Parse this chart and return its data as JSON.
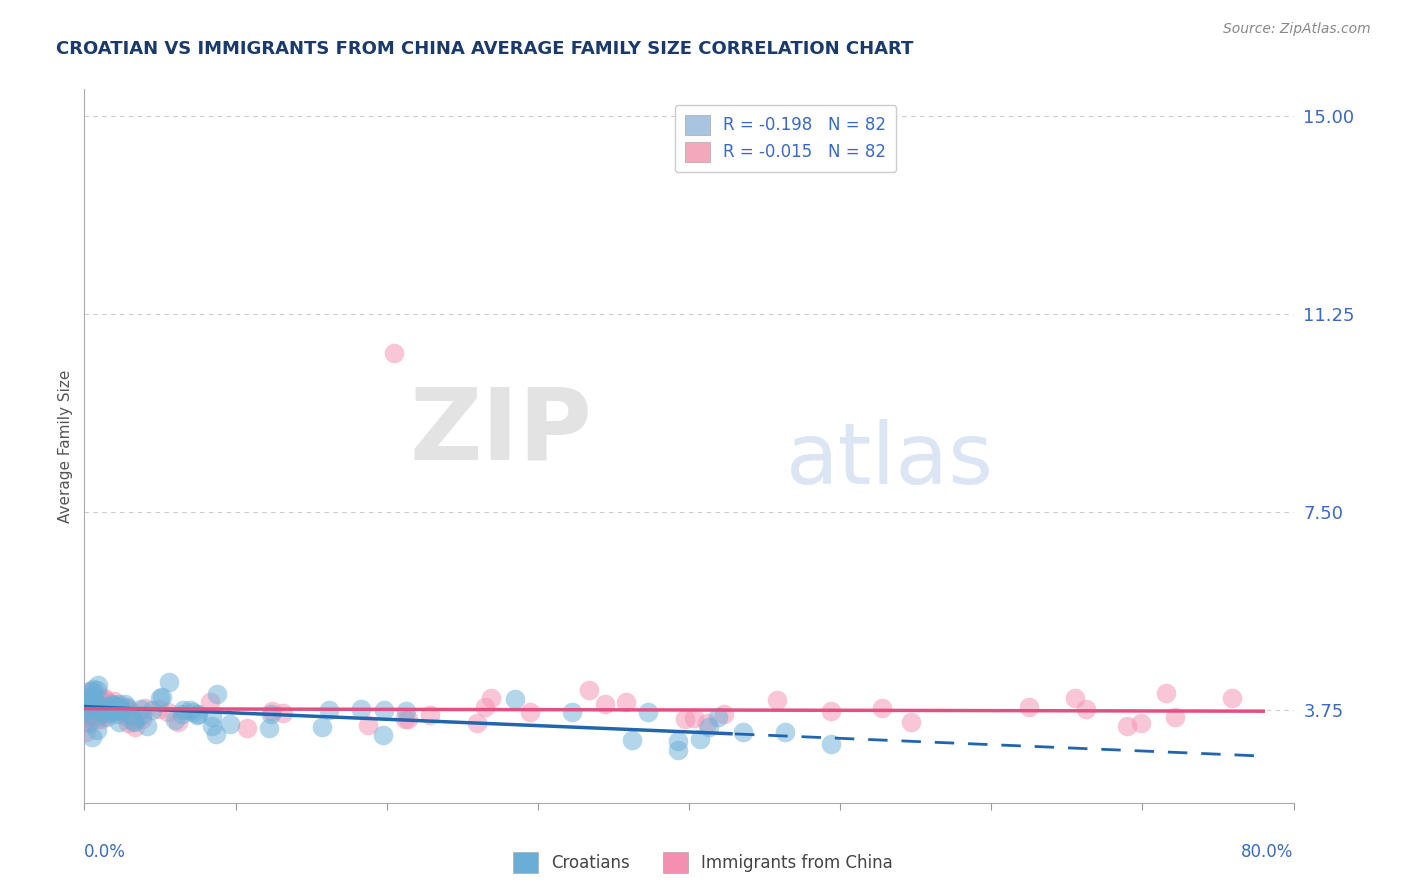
{
  "title": "CROATIAN VS IMMIGRANTS FROM CHINA AVERAGE FAMILY SIZE CORRELATION CHART",
  "source": "Source: ZipAtlas.com",
  "ylabel": "Average Family Size",
  "xmin": 0.0,
  "xmax": 0.8,
  "ymin": 2.0,
  "ymax": 15.5,
  "yticks": [
    3.75,
    7.5,
    11.25,
    15.0
  ],
  "legend_entries": [
    {
      "label": "R = -0.198   N = 82",
      "color": "#a8c4e0"
    },
    {
      "label": "R = -0.015   N = 82",
      "color": "#f4a8bb"
    }
  ],
  "croatians_color": "#6aaed6",
  "china_color": "#f48fb1",
  "trend_croatians_color": "#2166ac",
  "trend_china_color": "#e05080",
  "title_color": "#1a3a6b",
  "source_color": "#888888",
  "axis_label_color": "#3a6abf",
  "ylabel_color": "#555555",
  "background_color": "#ffffff",
  "grid_color": "#cccccc",
  "bottom_legend": [
    "Croatians",
    "Immigrants from China"
  ]
}
